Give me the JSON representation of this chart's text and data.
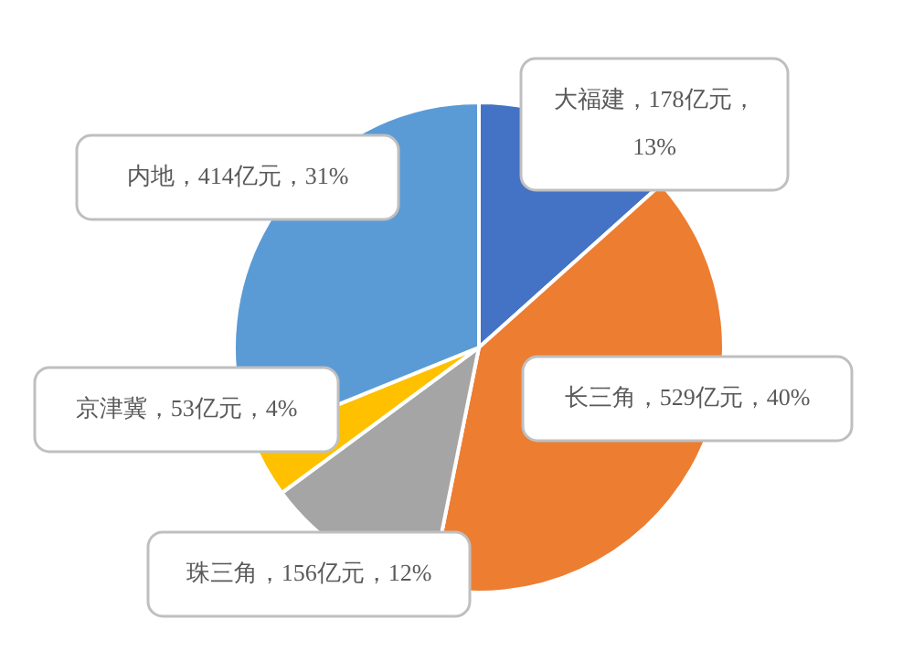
{
  "chart_data": {
    "type": "pie",
    "categories": [
      "大福建",
      "长三角",
      "珠三角",
      "京津冀",
      "内地"
    ],
    "values": [
      178,
      529,
      156,
      53,
      414
    ],
    "colors": [
      "#4472c4",
      "#ed7d31",
      "#a5a5a5",
      "#ffc000",
      "#5b9bd5"
    ],
    "value_labels": [
      "178亿元，13%",
      "529亿元，40%",
      "156亿元，12%",
      "53亿元，4%",
      "414亿元，31%"
    ],
    "legend": false
  }
}
